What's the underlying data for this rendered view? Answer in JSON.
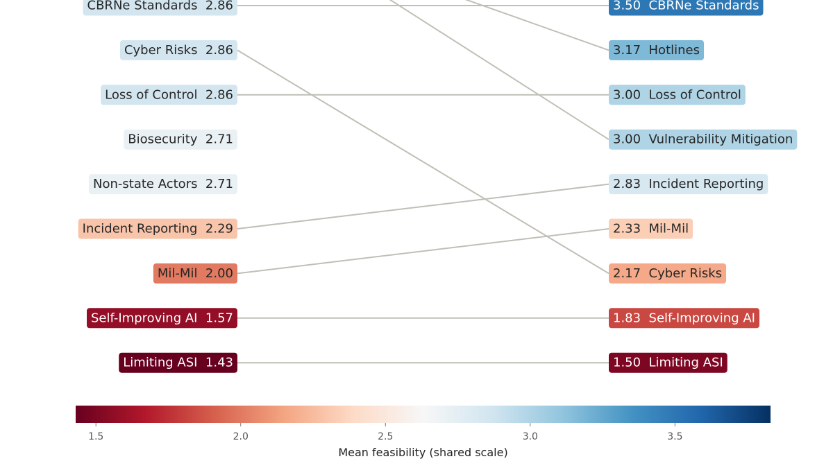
{
  "chart_data": {
    "type": "slope",
    "left": [
      {
        "label": "CBRNe Standards",
        "value": 2.86,
        "value_text": "2.86"
      },
      {
        "label": "Cyber Risks",
        "value": 2.86,
        "value_text": "2.86"
      },
      {
        "label": "Loss of Control",
        "value": 2.86,
        "value_text": "2.86"
      },
      {
        "label": "Biosecurity",
        "value": 2.71,
        "value_text": "2.71"
      },
      {
        "label": "Non-state Actors",
        "value": 2.71,
        "value_text": "2.71"
      },
      {
        "label": "Incident Reporting",
        "value": 2.29,
        "value_text": "2.29"
      },
      {
        "label": "Mil-Mil",
        "value": 2.0,
        "value_text": "2.00"
      },
      {
        "label": "Self-Improving AI",
        "value": 1.57,
        "value_text": "1.57"
      },
      {
        "label": "Limiting ASI",
        "value": 1.43,
        "value_text": "1.43"
      }
    ],
    "right": [
      {
        "label": "CBRNe Standards",
        "value": 3.5,
        "value_text": "3.50"
      },
      {
        "label": "Hotlines",
        "value": 3.17,
        "value_text": "3.17"
      },
      {
        "label": "Loss of Control",
        "value": 3.0,
        "value_text": "3.00"
      },
      {
        "label": "Vulnerability Mitigation",
        "value": 3.0,
        "value_text": "3.00"
      },
      {
        "label": "Incident Reporting",
        "value": 2.83,
        "value_text": "2.83"
      },
      {
        "label": "Mil-Mil",
        "value": 2.33,
        "value_text": "2.33"
      },
      {
        "label": "Cyber Risks",
        "value": 2.17,
        "value_text": "2.17"
      },
      {
        "label": "Self-Improving AI",
        "value": 1.83,
        "value_text": "1.83"
      },
      {
        "label": "Limiting ASI",
        "value": 1.5,
        "value_text": "1.50"
      }
    ],
    "colorbar": {
      "label": "Mean feasibility (shared scale)",
      "range": [
        1.43,
        3.83
      ],
      "ticks": [
        1.5,
        2.0,
        2.5,
        3.0,
        3.5
      ],
      "tick_labels": [
        "1.5",
        "2.0",
        "2.5",
        "3.0",
        "3.5"
      ],
      "colormap": "RdBu",
      "colors": [
        "#67001f",
        "#b2182b",
        "#d6604d",
        "#f4a582",
        "#fddbc7",
        "#f7f7f7",
        "#d1e5f0",
        "#92c5de",
        "#4393c3",
        "#2166ac",
        "#053061"
      ]
    },
    "connector_color": "#c0bfb6"
  }
}
